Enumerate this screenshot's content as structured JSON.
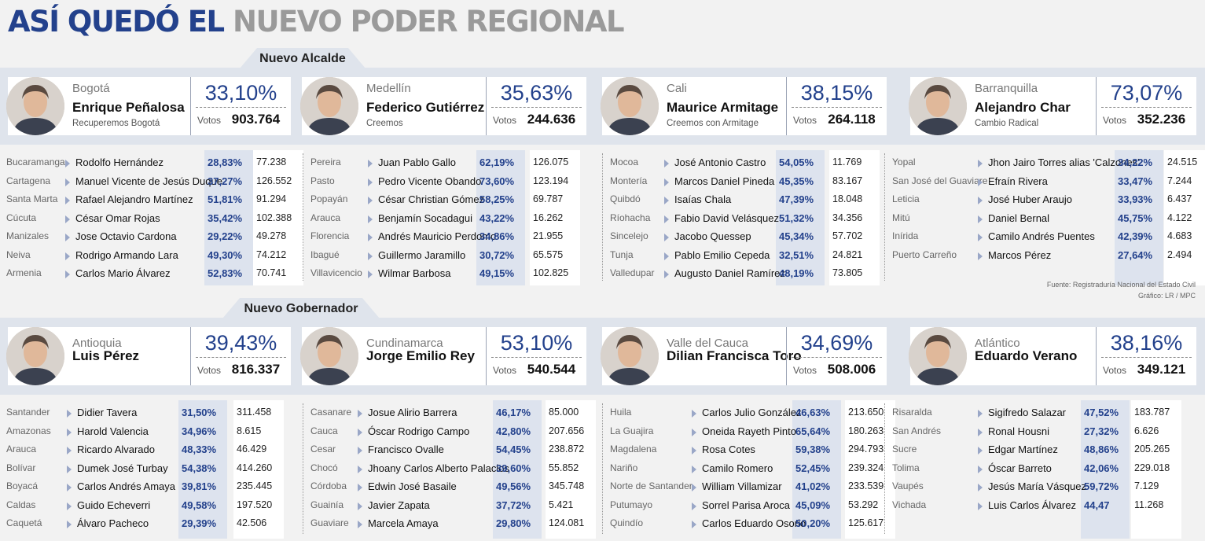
{
  "title": {
    "part1": "ASÍ QUEDÓ EL",
    "part2": "NUEVO PODER REGIONAL"
  },
  "alcalde": {
    "section_label": "Nuevo Alcalde",
    "cards": [
      {
        "city": "Bogotá",
        "name": "Enrique Peñalosa",
        "party": "Recuperemos Bogotá",
        "pct": "33,10%",
        "votes_label": "Votos",
        "votes": "903.764"
      },
      {
        "city": "Medellín",
        "name": "Federico Gutiérrez",
        "party": "Creemos",
        "pct": "35,63%",
        "votes_label": "Votos",
        "votes": "244.636"
      },
      {
        "city": "Cali",
        "name": "Maurice Armitage",
        "party": "Creemos con Armitage",
        "pct": "38,15%",
        "votes_label": "Votos",
        "votes": "264.118"
      },
      {
        "city": "Barranquilla",
        "name": "Alejandro Char",
        "party": "Cambio Radical",
        "pct": "73,07%",
        "votes_label": "Votos",
        "votes": "352.236"
      }
    ],
    "tables": [
      [
        {
          "place": "Bucaramanga",
          "name": "Rodolfo Hernández",
          "pct": "28,83%",
          "votes": "77.238"
        },
        {
          "place": "Cartagena",
          "name": "Manuel Vicente de Jesús Duque",
          "pct": "37,27%",
          "votes": "126.552"
        },
        {
          "place": "Santa Marta",
          "name": "Rafael Alejandro Martínez",
          "pct": "51,81%",
          "votes": "91.294"
        },
        {
          "place": "Cúcuta",
          "name": "César Omar Rojas",
          "pct": "35,42%",
          "votes": "102.388"
        },
        {
          "place": "Manizales",
          "name": "Jose Octavio Cardona",
          "pct": "29,22%",
          "votes": "49.278"
        },
        {
          "place": "Neiva",
          "name": "Rodrigo Armando Lara",
          "pct": "49,30%",
          "votes": "74.212"
        },
        {
          "place": "Armenia",
          "name": "Carlos Mario Álvarez",
          "pct": "52,83%",
          "votes": "70.741"
        }
      ],
      [
        {
          "place": "Pereira",
          "name": "Juan Pablo Gallo",
          "pct": "62,19%",
          "votes": "126.075"
        },
        {
          "place": "Pasto",
          "name": "Pedro Vicente Obando",
          "pct": "73,60%",
          "votes": "123.194"
        },
        {
          "place": "Popayán",
          "name": "César Christian Gómez",
          "pct": "58,25%",
          "votes": "69.787"
        },
        {
          "place": "Arauca",
          "name": "Benjamín Socadagui",
          "pct": "43,22%",
          "votes": "16.262"
        },
        {
          "place": "Florencia",
          "name": "Andrés Mauricio Perdomo",
          "pct": "34,86%",
          "votes": "21.955"
        },
        {
          "place": "Ibagué",
          "name": "Guillermo Jaramillo",
          "pct": "30,72%",
          "votes": "65.575"
        },
        {
          "place": "Villavicencio",
          "name": "Wilmar Barbosa",
          "pct": "49,15%",
          "votes": "102.825"
        }
      ],
      [
        {
          "place": "Mocoa",
          "name": "José Antonio Castro",
          "pct": "54,05%",
          "votes": "11.769"
        },
        {
          "place": "Montería",
          "name": "Marcos Daniel Pineda",
          "pct": "45,35%",
          "votes": "83.167"
        },
        {
          "place": "Quibdó",
          "name": "Isaías Chala",
          "pct": "47,39%",
          "votes": "18.048"
        },
        {
          "place": "Ríohacha",
          "name": "Fabio David Velásquez",
          "pct": "51,32%",
          "votes": "34.356"
        },
        {
          "place": "Sincelejo",
          "name": "Jacobo Quessep",
          "pct": "45,34%",
          "votes": "57.702"
        },
        {
          "place": "Tunja",
          "name": "Pablo Emilio Cepeda",
          "pct": "32,51%",
          "votes": "24.821"
        },
        {
          "place": "Valledupar",
          "name": "Augusto Daniel Ramírez",
          "pct": "48,19%",
          "votes": "73.805"
        }
      ],
      [
        {
          "place": "Yopal",
          "name": "Jhon Jairo Torres alias 'Calzones'",
          "pct": "34,22%",
          "votes": "24.515"
        },
        {
          "place": "San José del Guaviare",
          "name": "Efraín Rivera",
          "pct": "33,47%",
          "votes": "7.244"
        },
        {
          "place": "Leticia",
          "name": "José Huber Araujo",
          "pct": "33,93%",
          "votes": "6.437"
        },
        {
          "place": "Mitú",
          "name": "Daniel Bernal",
          "pct": "45,75%",
          "votes": "4.122"
        },
        {
          "place": "Inírida",
          "name": "Camilo Andrés Puentes",
          "pct": "42,39%",
          "votes": "4.683"
        },
        {
          "place": "Puerto Carreño",
          "name": "Marcos Pérez",
          "pct": "27,64%",
          "votes": "2.494"
        }
      ]
    ]
  },
  "source": {
    "line1": "Fuente: Registraduría Nacional del Estado Civil",
    "line2": "Gráfico: LR / MPC"
  },
  "gobernador": {
    "section_label": "Nuevo Gobernador",
    "cards": [
      {
        "city": "Antioquia",
        "name": "Luis Pérez",
        "pct": "39,43%",
        "votes_label": "Votos",
        "votes": "816.337"
      },
      {
        "city": "Cundinamarca",
        "name": "Jorge Emilio Rey",
        "pct": "53,10%",
        "votes_label": "Votos",
        "votes": "540.544"
      },
      {
        "city": "Valle del Cauca",
        "name": "Dilian Francisca Toro",
        "pct": "34,69%",
        "votes_label": "Votos",
        "votes": "508.006"
      },
      {
        "city": "Atlántico",
        "name": "Eduardo Verano",
        "pct": "38,16%",
        "votes_label": "Votos",
        "votes": "349.121"
      }
    ],
    "tables": [
      [
        {
          "place": "Santander",
          "name": "Didier Tavera",
          "pct": "31,50%",
          "votes": "311.458"
        },
        {
          "place": "Amazonas",
          "name": "Harold Valencia",
          "pct": "34,96%",
          "votes": "8.615"
        },
        {
          "place": "Arauca",
          "name": "Ricardo Alvarado",
          "pct": "48,33%",
          "votes": "46.429"
        },
        {
          "place": "Bolívar",
          "name": "Dumek José Turbay",
          "pct": "54,38%",
          "votes": "414.260"
        },
        {
          "place": "Boyacá",
          "name": "Carlos Andrés Amaya",
          "pct": "39,81%",
          "votes": "235.445"
        },
        {
          "place": "Caldas",
          "name": "Guido Echeverri",
          "pct": "49,58%",
          "votes": "197.520"
        },
        {
          "place": "Caquetá",
          "name": "Álvaro Pacheco",
          "pct": "29,39%",
          "votes": "42.506"
        }
      ],
      [
        {
          "place": "Casanare",
          "name": "Josue Alirio Barrera",
          "pct": "46,17%",
          "votes": "85.000"
        },
        {
          "place": "Cauca",
          "name": "Óscar Rodrigo Campo",
          "pct": "42,80%",
          "votes": "207.656"
        },
        {
          "place": "Cesar",
          "name": "Francisco Ovalle",
          "pct": "54,45%",
          "votes": "238.872"
        },
        {
          "place": "Chocó",
          "name": "Jhoany Carlos Alberto Palacios",
          "pct": "39,60%",
          "votes": "55.852"
        },
        {
          "place": "Córdoba",
          "name": "Edwin José Basaile",
          "pct": "49,56%",
          "votes": "345.748"
        },
        {
          "place": "Guainía",
          "name": "Javier Zapata",
          "pct": "37,72%",
          "votes": "5.421"
        },
        {
          "place": "Guaviare",
          "name": "Marcela Amaya",
          "pct": "29,80%",
          "votes": "124.081"
        }
      ],
      [
        {
          "place": "Huila",
          "name": "Carlos Julio González",
          "pct": "46,63%",
          "votes": "213.650"
        },
        {
          "place": "La Guajira",
          "name": "Oneida Rayeth Pinto",
          "pct": "65,64%",
          "votes": "180.263"
        },
        {
          "place": "Magdalena",
          "name": "Rosa Cotes",
          "pct": "59,38%",
          "votes": "294.793"
        },
        {
          "place": "Nariño",
          "name": "Camilo Romero",
          "pct": "52,45%",
          "votes": "239.324"
        },
        {
          "place": "Norte de Santander",
          "name": "William Villamizar",
          "pct": "41,02%",
          "votes": "233.539"
        },
        {
          "place": "Putumayo",
          "name": "Sorrel Parisa Aroca",
          "pct": "45,09%",
          "votes": "53.292"
        },
        {
          "place": "Quindío",
          "name": "Carlos Eduardo Osorio",
          "pct": "50,20%",
          "votes": "125.617"
        }
      ],
      [
        {
          "place": "Risaralda",
          "name": "Sigifredo Salazar",
          "pct": "47,52%",
          "votes": "183.787"
        },
        {
          "place": "San Andrés",
          "name": "Ronal Housni",
          "pct": "27,32%",
          "votes": "6.626"
        },
        {
          "place": "Sucre",
          "name": "Edgar Martínez",
          "pct": "48,86%",
          "votes": "205.265"
        },
        {
          "place": "Tolima",
          "name": "Óscar Barreto",
          "pct": "42,06%",
          "votes": "229.018"
        },
        {
          "place": "Vaupés",
          "name": "Jesús María Vásquez",
          "pct": "59,72%",
          "votes": "7.129"
        },
        {
          "place": "Vichada",
          "name": "Luis Carlos Álvarez",
          "pct": "44,47",
          "votes": "11.268"
        }
      ]
    ]
  }
}
